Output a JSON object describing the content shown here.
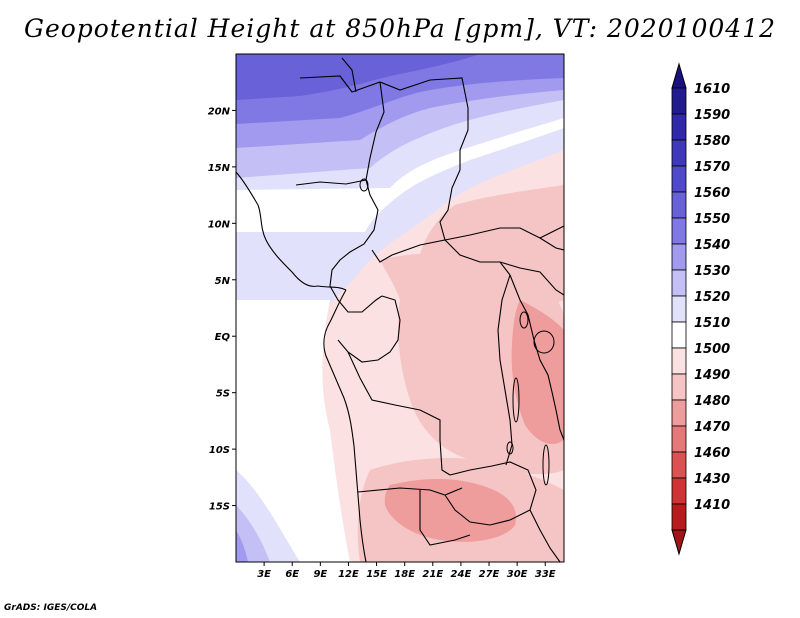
{
  "title": "Geopotential Height at 850hPa [gpm], VT: 2020100412",
  "credit": "GrADS: IGES/COLA",
  "map": {
    "variable": "Geopotential Height at 850hPa",
    "units": "gpm",
    "valid_time": "2020100412",
    "lon_range": [
      0,
      35
    ],
    "lat_range": [
      -20,
      25
    ],
    "lat_ticks": [
      {
        "value": 20,
        "label": "20N"
      },
      {
        "value": 15,
        "label": "15N"
      },
      {
        "value": 10,
        "label": "10N"
      },
      {
        "value": 5,
        "label": "5N"
      },
      {
        "value": 0,
        "label": "EQ"
      },
      {
        "value": -5,
        "label": "5S"
      },
      {
        "value": -10,
        "label": "10S"
      },
      {
        "value": -15,
        "label": "15S"
      }
    ],
    "lon_ticks": [
      {
        "value": 3,
        "label": "3E"
      },
      {
        "value": 6,
        "label": "6E"
      },
      {
        "value": 9,
        "label": "9E"
      },
      {
        "value": 12,
        "label": "12E"
      },
      {
        "value": 15,
        "label": "15E"
      },
      {
        "value": 18,
        "label": "18E"
      },
      {
        "value": 21,
        "label": "21E"
      },
      {
        "value": 24,
        "label": "24E"
      },
      {
        "value": 27,
        "label": "27E"
      },
      {
        "value": 30,
        "label": "30E"
      },
      {
        "value": 33,
        "label": "33E"
      }
    ]
  },
  "colorbar": {
    "levels": [
      {
        "label": "1610",
        "color": "#221a8f"
      },
      {
        "label": "1590",
        "color": "#3028a8"
      },
      {
        "label": "1580",
        "color": "#3f38bd"
      },
      {
        "label": "1570",
        "color": "#5049cc"
      },
      {
        "label": "1560",
        "color": "#6861d8"
      },
      {
        "label": "1550",
        "color": "#8179e3"
      },
      {
        "label": "1540",
        "color": "#a19aee"
      },
      {
        "label": "1530",
        "color": "#c4c0f5"
      },
      {
        "label": "1520",
        "color": "#e2e1fb"
      },
      {
        "label": "1510",
        "color": "#ffffff"
      },
      {
        "label": "1500",
        "color": "#fbe1e1"
      },
      {
        "label": "1490",
        "color": "#f5c4c4"
      },
      {
        "label": "1480",
        "color": "#ee9c9c"
      },
      {
        "label": "1470",
        "color": "#e57878"
      },
      {
        "label": "1460",
        "color": "#dc5151"
      },
      {
        "label": "1430",
        "color": "#ce3434"
      },
      {
        "label": "1410",
        "color": "#b71c1c"
      }
    ],
    "top_cap_color": "#1a1180",
    "bottom_cap_color": "#a01515"
  }
}
